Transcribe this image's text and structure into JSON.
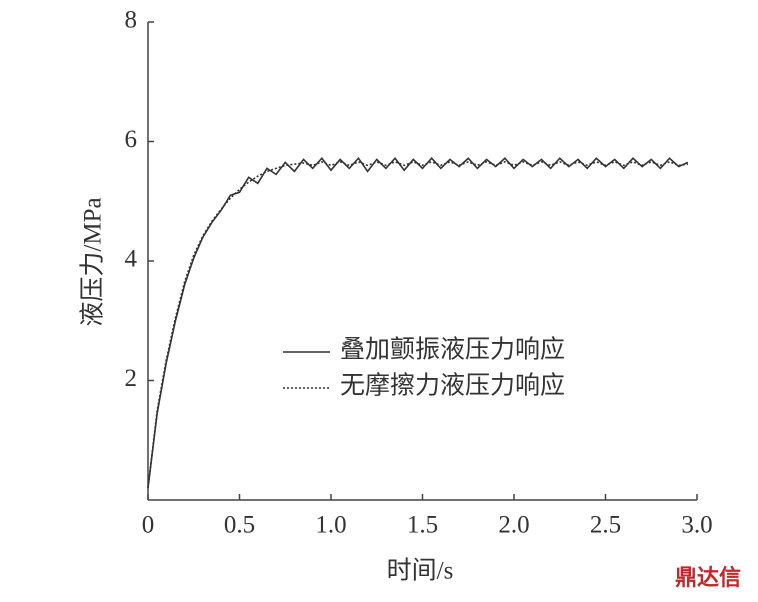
{
  "chart_data": {
    "type": "line",
    "x_label": "时间/s",
    "y_label": "液压力/MPa",
    "x": [
      0,
      0.05,
      0.1,
      0.15,
      0.2,
      0.25,
      0.3,
      0.35,
      0.4,
      0.45,
      0.5,
      0.55,
      0.6,
      0.65,
      0.7,
      0.75,
      0.8,
      0.85,
      0.9,
      0.95,
      1.0,
      1.05,
      1.1,
      1.15,
      1.2,
      1.25,
      1.3,
      1.35,
      1.4,
      1.45,
      1.5,
      1.55,
      1.6,
      1.65,
      1.7,
      1.75,
      1.8,
      1.85,
      1.9,
      1.95,
      2.0,
      2.05,
      2.1,
      2.15,
      2.2,
      2.25,
      2.3,
      2.35,
      2.4,
      2.45,
      2.5,
      2.55,
      2.6,
      2.65,
      2.7,
      2.75,
      2.8,
      2.85,
      2.9,
      2.95
    ],
    "series": [
      {
        "name": "叠加颤振液压力响应",
        "color": "#333333",
        "dash": "solid",
        "values": [
          0.2,
          1.45,
          2.3,
          3.0,
          3.6,
          4.05,
          4.4,
          4.65,
          4.85,
          5.1,
          5.15,
          5.4,
          5.3,
          5.55,
          5.45,
          5.65,
          5.5,
          5.7,
          5.55,
          5.72,
          5.52,
          5.7,
          5.55,
          5.72,
          5.5,
          5.7,
          5.55,
          5.72,
          5.52,
          5.7,
          5.55,
          5.72,
          5.55,
          5.7,
          5.58,
          5.72,
          5.55,
          5.7,
          5.58,
          5.72,
          5.55,
          5.7,
          5.58,
          5.7,
          5.55,
          5.72,
          5.58,
          5.7,
          5.55,
          5.72,
          5.58,
          5.7,
          5.55,
          5.72,
          5.58,
          5.7,
          5.55,
          5.72,
          5.58,
          5.65
        ]
      },
      {
        "name": "无摩擦力液压力响应",
        "color": "#333333",
        "dash": "dotted",
        "values": [
          0.2,
          1.5,
          2.35,
          3.05,
          3.65,
          4.1,
          4.42,
          4.67,
          4.87,
          5.05,
          5.2,
          5.32,
          5.42,
          5.5,
          5.55,
          5.6,
          5.62,
          5.64,
          5.6,
          5.66,
          5.6,
          5.66,
          5.6,
          5.66,
          5.6,
          5.66,
          5.6,
          5.66,
          5.6,
          5.66,
          5.6,
          5.66,
          5.6,
          5.66,
          5.6,
          5.66,
          5.6,
          5.66,
          5.6,
          5.66,
          5.6,
          5.66,
          5.6,
          5.66,
          5.6,
          5.66,
          5.6,
          5.66,
          5.6,
          5.66,
          5.6,
          5.66,
          5.6,
          5.66,
          5.6,
          5.66,
          5.6,
          5.66,
          5.6,
          5.62
        ]
      }
    ],
    "xlim": [
      0,
      3
    ],
    "xticks": [
      0,
      0.5,
      {
        "value": 1,
        "label": "1.0"
      },
      1.5,
      {
        "value": 2,
        "label": "2.0"
      },
      2.5,
      {
        "value": 3,
        "label": "3.0"
      }
    ],
    "ylim": [
      0,
      8
    ],
    "yticks": [
      2,
      4,
      6,
      8
    ],
    "grid": false
  },
  "watermark": "鼎达信"
}
